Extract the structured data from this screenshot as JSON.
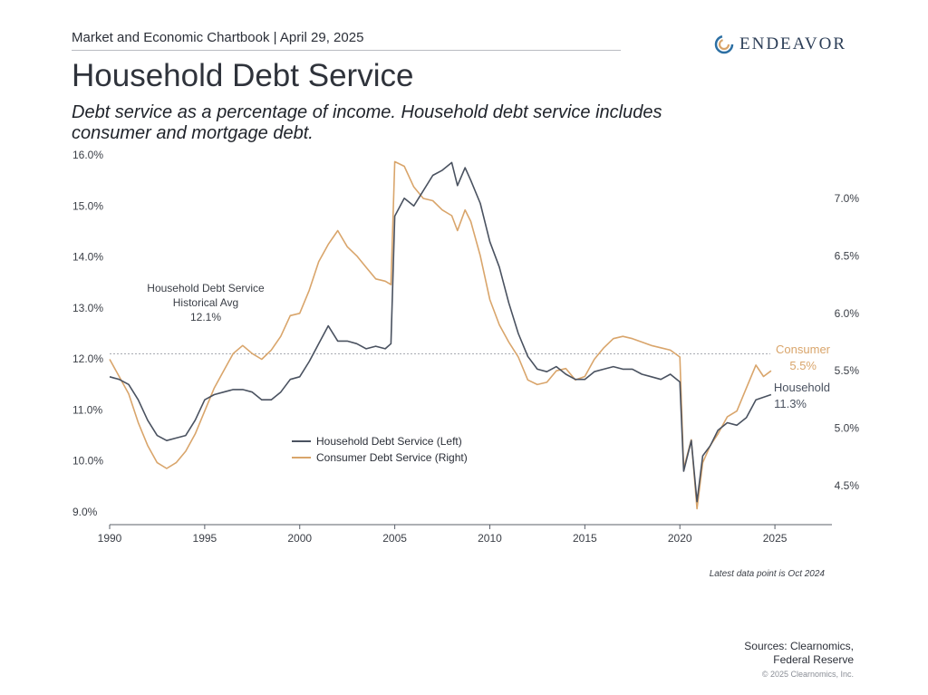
{
  "header": {
    "chartbook": "Market and Economic Chartbook | April 29, 2025",
    "brand": "ENDEAVOR"
  },
  "title": "Household Debt Service",
  "subtitle": "Debt service as a percentage of income. Household debt service includes consumer and mortgage debt.",
  "footnote": "Latest data point is Oct 2024",
  "sources": [
    "Sources: Clearnomics,",
    "Federal Reserve"
  ],
  "copyright": "© 2025 Clearnomics, Inc.",
  "colors": {
    "household": "#4a5260",
    "consumer": "#d9a56b",
    "avgline": "#a8acb3",
    "logo_outer": "#2c6fa3",
    "logo_inner": "#d9a56b"
  },
  "chart_data": {
    "type": "line",
    "x_ticks": [
      "1990",
      "1995",
      "2000",
      "2005",
      "2010",
      "2015",
      "2020",
      "2025"
    ],
    "x_range": [
      1990,
      2028
    ],
    "left_axis": {
      "ticks": [
        "16.0%",
        "15.0%",
        "14.0%",
        "13.0%",
        "12.0%",
        "11.0%",
        "10.0%",
        "9.0%"
      ],
      "range": [
        9,
        16
      ]
    },
    "right_axis": {
      "ticks": [
        "7.0%",
        "6.5%",
        "6.0%",
        "5.5%",
        "5.0%",
        "4.5%"
      ],
      "range": [
        4.2,
        7.3
      ]
    },
    "grid": false,
    "legend_position": "center",
    "legend": [
      "Household Debt Service (Left)",
      "Consumer Debt Service (Right)"
    ],
    "annotations": {
      "avg_label": [
        "Household Debt Service",
        "Historical Avg",
        "12.1%"
      ],
      "avg_value": 12.1,
      "consumer_end": [
        "Consumer",
        "5.5%"
      ],
      "household_end": [
        "Household",
        "11.3%"
      ]
    },
    "series": [
      {
        "name": "Household Debt Service (Left)",
        "axis": "left",
        "x": [
          1990,
          1990.5,
          1991,
          1991.5,
          1992,
          1992.5,
          1993,
          1993.5,
          1994,
          1994.5,
          1995,
          1995.5,
          1996,
          1996.5,
          1997,
          1997.5,
          1998,
          1998.5,
          1999,
          1999.5,
          2000,
          2000.5,
          2001,
          2001.5,
          2002,
          2002.5,
          2003,
          2003.5,
          2004,
          2004.5,
          2004.8,
          2005,
          2005.5,
          2006,
          2006.5,
          2007,
          2007.5,
          2008,
          2008.3,
          2008.7,
          2009,
          2009.5,
          2010,
          2010.5,
          2011,
          2011.5,
          2012,
          2012.5,
          2013,
          2013.5,
          2014,
          2014.5,
          2015,
          2015.5,
          2016,
          2016.5,
          2017,
          2017.5,
          2018,
          2018.5,
          2019,
          2019.5,
          2020,
          2020.2,
          2020.6,
          2020.9,
          2021.2,
          2021.6,
          2022,
          2022.5,
          2023,
          2023.5,
          2024,
          2024.4,
          2024.8
        ],
        "y": [
          11.65,
          11.6,
          11.5,
          11.2,
          10.8,
          10.5,
          10.4,
          10.45,
          10.5,
          10.8,
          11.2,
          11.3,
          11.35,
          11.4,
          11.4,
          11.35,
          11.2,
          11.2,
          11.35,
          11.6,
          11.65,
          11.95,
          12.3,
          12.65,
          12.35,
          12.35,
          12.3,
          12.2,
          12.25,
          12.2,
          12.3,
          14.8,
          15.15,
          15.0,
          15.3,
          15.6,
          15.7,
          15.85,
          15.4,
          15.75,
          15.5,
          15.05,
          14.3,
          13.8,
          13.1,
          12.5,
          12.05,
          11.8,
          11.75,
          11.85,
          11.7,
          11.6,
          11.6,
          11.75,
          11.8,
          11.85,
          11.8,
          11.8,
          11.7,
          11.65,
          11.6,
          11.7,
          11.55,
          9.8,
          10.4,
          9.2,
          10.1,
          10.3,
          10.6,
          10.75,
          10.7,
          10.85,
          11.2,
          11.25,
          11.3
        ]
      },
      {
        "name": "Consumer Debt Service (Right)",
        "axis": "right",
        "x": [
          1990,
          1990.5,
          1991,
          1991.5,
          1992,
          1992.5,
          1993,
          1993.5,
          1994,
          1994.5,
          1995,
          1995.5,
          1996,
          1996.5,
          1997,
          1997.5,
          1998,
          1998.5,
          1999,
          1999.5,
          2000,
          2000.5,
          2001,
          2001.5,
          2002,
          2002.5,
          2003,
          2003.5,
          2004,
          2004.5,
          2004.8,
          2005,
          2005.5,
          2006,
          2006.5,
          2007,
          2007.5,
          2008,
          2008.3,
          2008.7,
          2009,
          2009.5,
          2010,
          2010.5,
          2011,
          2011.5,
          2012,
          2012.5,
          2013,
          2013.5,
          2014,
          2014.5,
          2015,
          2015.5,
          2016,
          2016.5,
          2017,
          2017.5,
          2018,
          2018.5,
          2019,
          2019.5,
          2020,
          2020.2,
          2020.6,
          2020.9,
          2021.2,
          2021.6,
          2022,
          2022.5,
          2023,
          2023.5,
          2024,
          2024.4,
          2024.8
        ],
        "y": [
          5.6,
          5.45,
          5.3,
          5.05,
          4.85,
          4.7,
          4.65,
          4.7,
          4.8,
          4.95,
          5.15,
          5.35,
          5.5,
          5.65,
          5.72,
          5.65,
          5.6,
          5.68,
          5.8,
          5.98,
          6.0,
          6.2,
          6.45,
          6.6,
          6.72,
          6.58,
          6.5,
          6.4,
          6.3,
          6.28,
          6.25,
          7.32,
          7.28,
          7.1,
          7.0,
          6.98,
          6.9,
          6.85,
          6.72,
          6.9,
          6.8,
          6.5,
          6.12,
          5.9,
          5.75,
          5.62,
          5.42,
          5.38,
          5.4,
          5.5,
          5.52,
          5.42,
          5.45,
          5.6,
          5.7,
          5.78,
          5.8,
          5.78,
          5.75,
          5.72,
          5.7,
          5.68,
          5.62,
          4.65,
          4.9,
          4.3,
          4.7,
          4.85,
          4.95,
          5.1,
          5.15,
          5.35,
          5.55,
          5.45,
          5.5
        ]
      }
    ]
  }
}
